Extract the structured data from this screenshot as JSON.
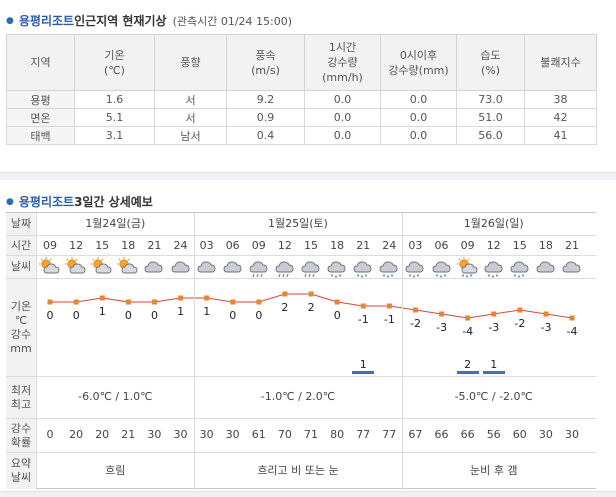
{
  "observation": {
    "title_place": "용평리조트",
    "title_rest": " 인근지역 현재기상",
    "obs_time": "(관측시간 01/24 15:00)",
    "headers": [
      [
        "지역"
      ],
      [
        "기온",
        "(℃)"
      ],
      [
        "풍향"
      ],
      [
        "풍속",
        "(m/s)"
      ],
      [
        "1시간",
        "강수량",
        "(mm/h)"
      ],
      [
        "0시이후",
        "강수량(mm)"
      ],
      [
        "습도",
        "(%)"
      ],
      [
        "불쾌지수"
      ]
    ],
    "rows": [
      [
        "용평",
        "1.6",
        "서",
        "9.2",
        "0.0",
        "0.0",
        "73.0",
        "38"
      ],
      [
        "면온",
        "5.1",
        "서",
        "0.9",
        "0.0",
        "0.0",
        "51.0",
        "42"
      ],
      [
        "태백",
        "3.1",
        "남서",
        "0.4",
        "0.0",
        "0.0",
        "56.0",
        "41"
      ]
    ]
  },
  "forecast": {
    "title_place": "용평리조트",
    "title_rest": " 3일간 상세예보",
    "labels": {
      "date": "날짜",
      "time": "시간",
      "weather": "날씨",
      "temp_lines": [
        "기온",
        "℃"
      ],
      "rain_lines": [
        "강수",
        "mm"
      ],
      "minmax_lines": [
        "최저",
        "최고"
      ],
      "prob_lines": [
        "강수",
        "확률"
      ],
      "summary_lines": [
        "요약",
        "날씨"
      ]
    },
    "days": [
      {
        "date": "1월24일(금)",
        "minmax": "-6.0℃ / 1.0℃",
        "summary": "흐림"
      },
      {
        "date": "1월25일(토)",
        "minmax": "-1.0℃ / 2.0℃",
        "summary": "흐리고 비 또는 눈"
      },
      {
        "date": "1월26일(일)",
        "minmax": "-5.0℃ / -2.0℃",
        "summary": "눈비 후 갬"
      }
    ],
    "hours": [
      "09",
      "12",
      "15",
      "18",
      "21",
      "24",
      "03",
      "06",
      "09",
      "12",
      "15",
      "18",
      "21",
      "24",
      "03",
      "06",
      "09",
      "12",
      "15",
      "18",
      "21"
    ],
    "icons": [
      "partly-cloudy-sun-icon",
      "partly-cloudy-sun-icon",
      "partly-cloudy-sun-icon",
      "partly-cloudy-sun-icon",
      "cloudy-icon",
      "cloudy-icon",
      "cloudy-icon",
      "cloudy-icon",
      "rain-cloud-icon",
      "rain-cloud-icon",
      "rain-cloud-icon",
      "snow-cloud-icon",
      "snow-cloud-icon",
      "snow-cloud-icon",
      "snow-cloud-icon",
      "snow-cloud-icon",
      "snow-sun-icon",
      "snow-cloud-icon",
      "snow-cloud-icon",
      "cloudy-icon",
      "cloudy-icon"
    ],
    "temps": [
      0,
      0,
      1,
      0,
      0,
      1,
      1,
      0,
      0,
      2,
      2,
      0,
      -1,
      -1,
      -2,
      -3,
      -4,
      -3,
      -2,
      -3,
      -4
    ],
    "temp_labels": [
      "0",
      "0",
      "1",
      "0",
      "0",
      "1",
      "1",
      "0",
      "0",
      "2",
      "2",
      "0",
      "-1",
      "-1",
      "-2",
      "-3",
      "-4",
      "-3",
      "-2",
      "-3",
      "-4"
    ],
    "rain": [
      null,
      null,
      null,
      null,
      null,
      null,
      null,
      null,
      null,
      null,
      null,
      null,
      1,
      null,
      null,
      null,
      2,
      1,
      null,
      null,
      null
    ],
    "rain_labels": [
      "",
      "",
      "",
      "",
      "",
      "",
      "",
      "",
      "",
      "",
      "",
      "",
      "1",
      "",
      "",
      "",
      "2",
      "1",
      "",
      "",
      ""
    ],
    "probabilities": [
      "0",
      "20",
      "20",
      "21",
      "30",
      "30",
      "30",
      "30",
      "61",
      "70",
      "71",
      "80",
      "77",
      "77",
      "67",
      "66",
      "66",
      "56",
      "60",
      "30",
      "30"
    ],
    "colors": {
      "line": "#d9453a",
      "point": "#e8862e",
      "rain_bar": "#3d6fc4",
      "accent": "#2a5da8"
    }
  }
}
